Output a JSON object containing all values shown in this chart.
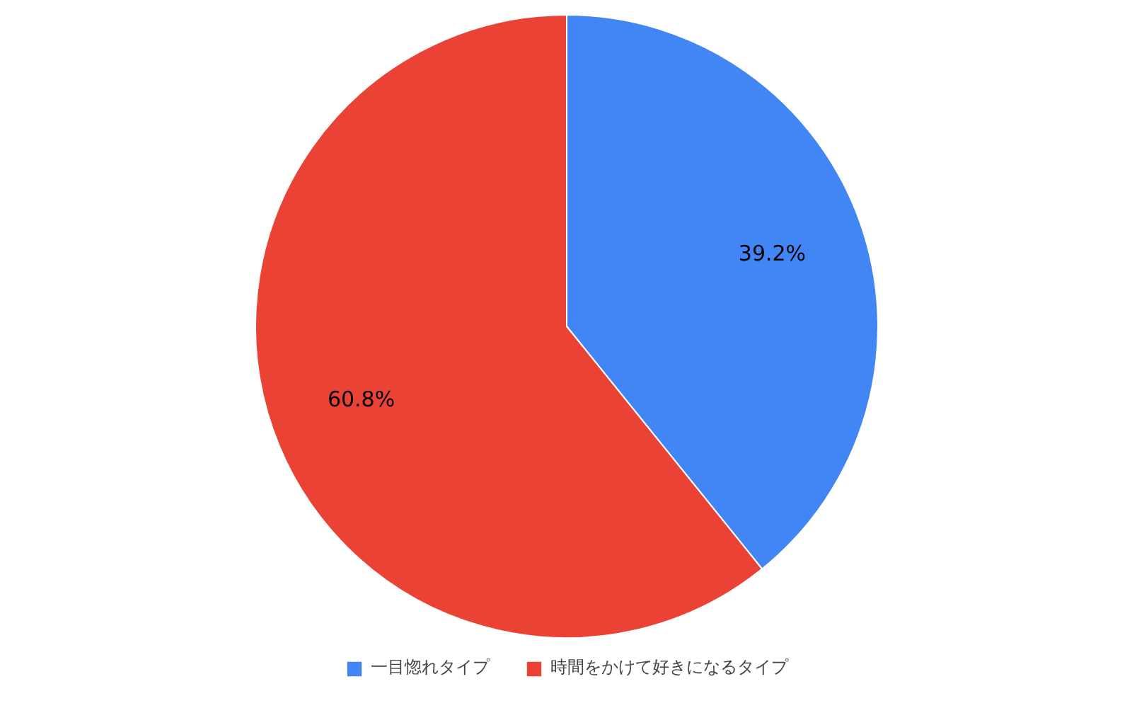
{
  "chart_data": {
    "type": "pie",
    "categories": [
      "一目惚れタイプ",
      "時間をかけて好きになるタイプ"
    ],
    "values": [
      39.2,
      60.8
    ],
    "colors": [
      "#4285f4",
      "#ea4335"
    ],
    "value_labels": [
      "39.2%",
      "60.8%"
    ],
    "legend": "bottom"
  }
}
